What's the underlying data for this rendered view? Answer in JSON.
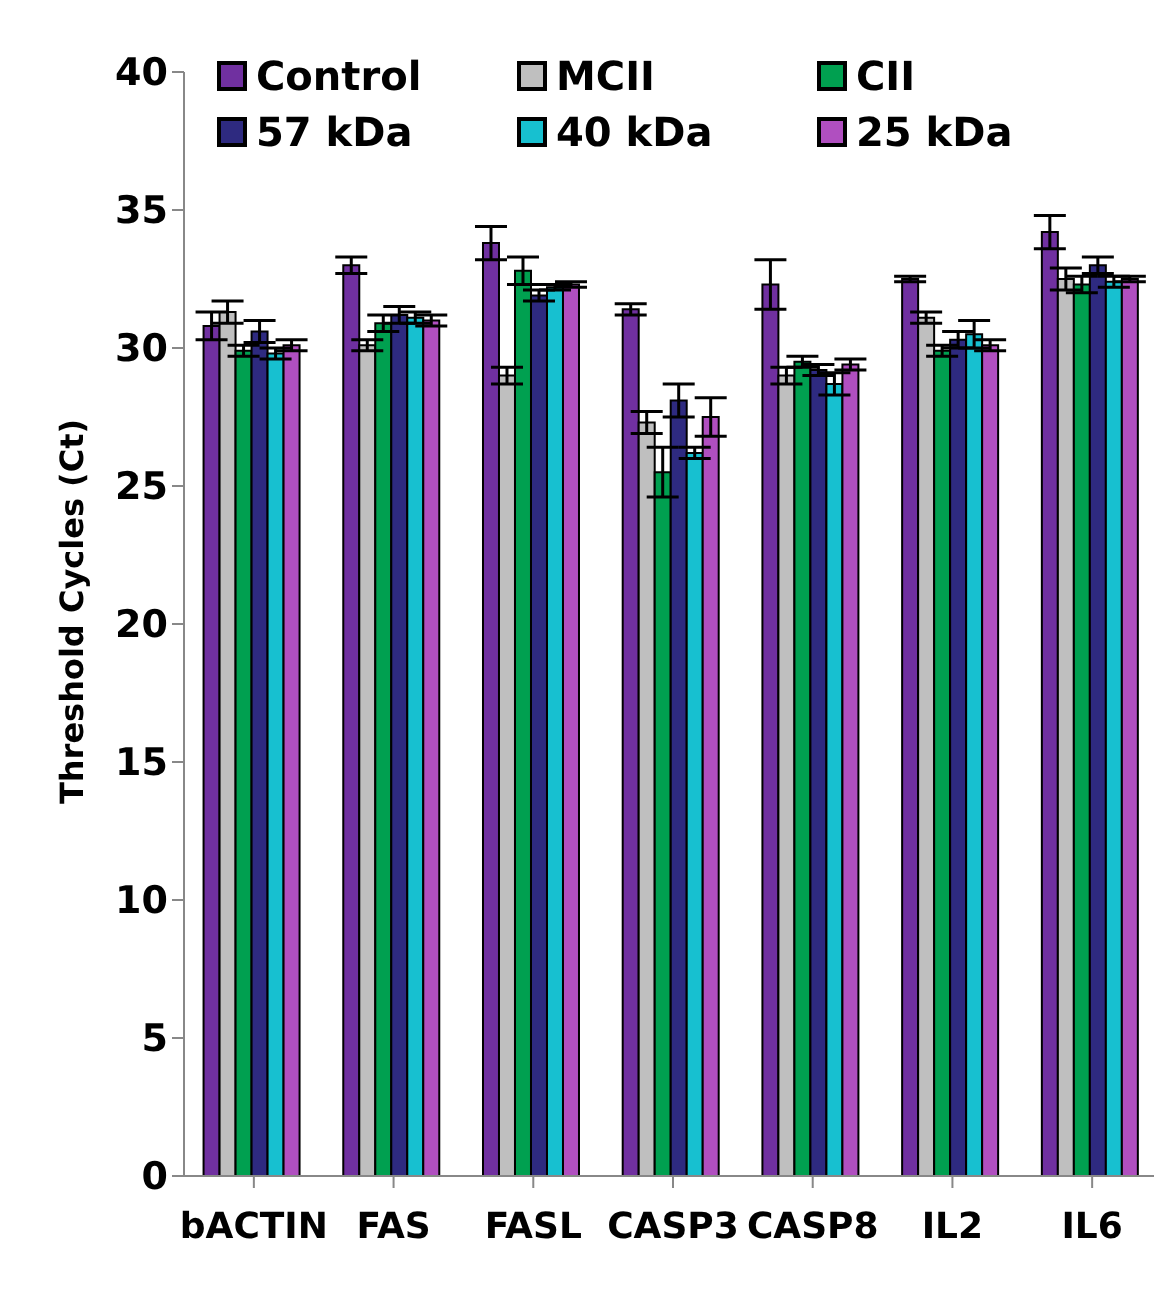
{
  "chart_data": {
    "type": "bar",
    "ylabel": "Threshold Cycles (Ct)",
    "categories": [
      "bACTIN",
      "FAS",
      "FASL",
      "CASP3",
      "CASP8",
      "IL2",
      "IL6"
    ],
    "series": [
      {
        "name": "Control",
        "color": "#7030a0",
        "values": [
          30.8,
          33.0,
          33.8,
          31.4,
          32.3,
          32.5,
          34.2
        ],
        "errors": [
          0.5,
          0.3,
          0.6,
          0.2,
          0.9,
          0.1,
          0.6
        ]
      },
      {
        "name": "MCII",
        "color": "#bfbfbf",
        "values": [
          31.3,
          30.1,
          29.0,
          27.3,
          29.0,
          31.1,
          32.5
        ],
        "errors": [
          0.4,
          0.2,
          0.3,
          0.4,
          0.3,
          0.2,
          0.4
        ]
      },
      {
        "name": "CII",
        "color": "#00a050",
        "values": [
          29.9,
          30.9,
          32.8,
          25.5,
          29.5,
          29.9,
          32.3
        ],
        "errors": [
          0.2,
          0.3,
          0.5,
          0.9,
          0.2,
          0.2,
          0.3
        ]
      },
      {
        "name": "57 kDa",
        "color": "#2e2a80",
        "values": [
          30.6,
          31.2,
          31.9,
          28.1,
          29.2,
          30.3,
          33.0
        ],
        "errors": [
          0.4,
          0.3,
          0.2,
          0.6,
          0.2,
          0.3,
          0.3
        ]
      },
      {
        "name": "40 kDa",
        "color": "#17c0d0",
        "values": [
          29.8,
          31.1,
          32.2,
          26.2,
          28.7,
          30.5,
          32.4
        ],
        "errors": [
          0.2,
          0.2,
          0.1,
          0.2,
          0.4,
          0.5,
          0.2
        ]
      },
      {
        "name": "25 kDa",
        "color": "#b04fc0",
        "values": [
          30.1,
          31.0,
          32.3,
          27.5,
          29.4,
          30.1,
          32.5
        ],
        "errors": [
          0.2,
          0.2,
          0.1,
          0.7,
          0.2,
          0.2,
          0.1
        ]
      }
    ],
    "ylim": [
      0,
      40
    ],
    "yticks": [
      0,
      5,
      10,
      15,
      20,
      25,
      30,
      35,
      40
    ],
    "grid": false,
    "legend": "top"
  }
}
